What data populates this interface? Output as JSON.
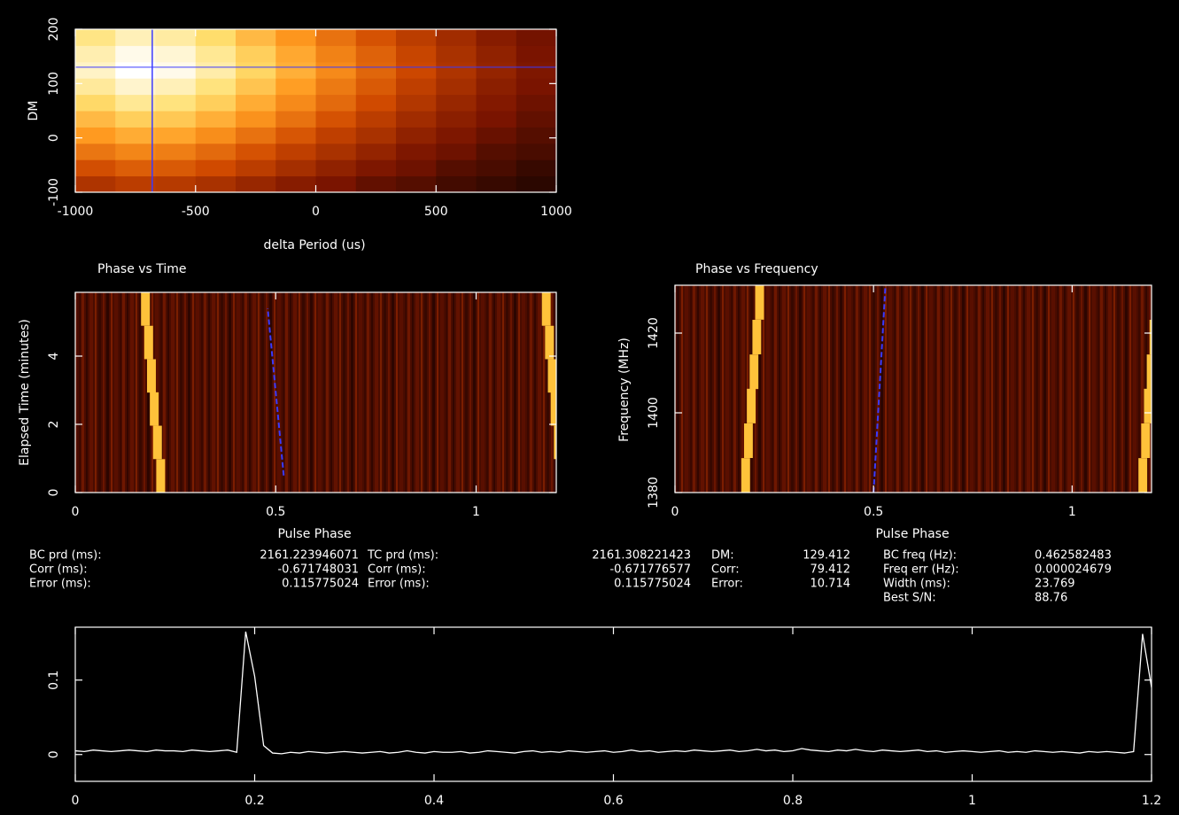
{
  "chart_data": [
    {
      "type": "heatmap",
      "xlabel": "delta Period (us)",
      "ylabel": "DM",
      "xlim": [
        -1000,
        1000
      ],
      "ylim": [
        -100,
        200
      ],
      "xticks": [
        -1000,
        -500,
        0,
        500,
        1000
      ],
      "yticks": [
        -100,
        0,
        100,
        200
      ],
      "colormap": [
        "#000000",
        "#7a1400",
        "#d04a00",
        "#ff9a20",
        "#ffe070",
        "#ffffff"
      ],
      "z": [
        [
          0.32,
          0.35,
          0.34,
          0.31,
          0.27,
          0.23,
          0.2,
          0.16,
          0.14,
          0.11,
          0.09,
          0.07
        ],
        [
          0.41,
          0.45,
          0.44,
          0.4,
          0.35,
          0.3,
          0.25,
          0.21,
          0.18,
          0.14,
          0.12,
          0.09
        ],
        [
          0.51,
          0.55,
          0.53,
          0.48,
          0.42,
          0.36,
          0.31,
          0.26,
          0.21,
          0.18,
          0.14,
          0.12
        ],
        [
          0.6,
          0.65,
          0.63,
          0.57,
          0.5,
          0.43,
          0.36,
          0.31,
          0.25,
          0.21,
          0.17,
          0.14
        ],
        [
          0.69,
          0.75,
          0.73,
          0.66,
          0.58,
          0.5,
          0.42,
          0.35,
          0.29,
          0.24,
          0.2,
          0.16
        ],
        [
          0.78,
          0.85,
          0.82,
          0.75,
          0.65,
          0.56,
          0.48,
          0.4,
          0.33,
          0.27,
          0.22,
          0.18
        ],
        [
          0.86,
          0.93,
          0.9,
          0.82,
          0.72,
          0.61,
          0.52,
          0.44,
          0.36,
          0.3,
          0.24,
          0.2
        ],
        [
          0.92,
          1,
          0.97,
          0.88,
          0.77,
          0.66,
          0.56,
          0.47,
          0.39,
          0.32,
          0.26,
          0.21
        ],
        [
          0.89,
          0.97,
          0.94,
          0.85,
          0.75,
          0.64,
          0.54,
          0.46,
          0.38,
          0.31,
          0.25,
          0.2
        ],
        [
          0.83,
          0.9,
          0.87,
          0.79,
          0.69,
          0.59,
          0.5,
          0.42,
          0.35,
          0.29,
          0.23,
          0.19
        ]
      ],
      "crosshair": {
        "x": -680,
        "y": 130,
        "color": "#3a3aff"
      }
    },
    {
      "type": "phase",
      "title": "Phase vs Time",
      "xlabel": "Pulse Phase",
      "ylabel": "Elapsed Time (minutes)",
      "xlim": [
        0,
        1.2
      ],
      "ylim": [
        0,
        5.87
      ],
      "xticks": [
        0,
        0.5,
        1
      ],
      "yticks": [
        0,
        2,
        4
      ],
      "background": "#4a0c00",
      "tracks": [
        {
          "color": "#ffc23a",
          "x": [
            0.213,
            0.205,
            0.197,
            0.19,
            0.183,
            0.175
          ],
          "y": [
            0.49,
            1.47,
            2.45,
            3.42,
            4.4,
            5.38
          ]
        },
        {
          "color": "#ffc23a",
          "x": [
            1.213,
            1.205,
            1.197,
            1.19,
            1.183,
            1.175
          ],
          "y": [
            0.49,
            1.47,
            2.45,
            3.42,
            4.4,
            5.38
          ]
        }
      ],
      "fit": {
        "color": "#3a3aff",
        "x": [
          0.52,
          0.48
        ],
        "y": [
          0.5,
          5.4
        ]
      }
    },
    {
      "type": "phase",
      "title": "Phase vs Frequency",
      "xlabel": "Pulse Phase",
      "ylabel": "Frequency (MHz)",
      "xlim": [
        0,
        1.2
      ],
      "ylim": [
        1380,
        1432
      ],
      "xticks": [
        0,
        0.5,
        1
      ],
      "yticks": [
        1380,
        1400,
        1420
      ],
      "background": "#4a0c00",
      "tracks": [
        {
          "color": "#ffc23a",
          "x": [
            0.178,
            0.185,
            0.192,
            0.199,
            0.206,
            0.213
          ],
          "y": [
            1384.3,
            1393,
            1401.7,
            1410.3,
            1419,
            1427.7
          ]
        },
        {
          "color": "#ffc23a",
          "x": [
            1.178,
            1.185,
            1.192,
            1.199,
            1.206,
            1.213
          ],
          "y": [
            1384.3,
            1393,
            1401.7,
            1410.3,
            1419,
            1427.7
          ]
        }
      ],
      "fit": {
        "color": "#3a3aff",
        "x": [
          0.5,
          0.53
        ],
        "y": [
          1380,
          1432
        ]
      }
    },
    {
      "type": "line",
      "color": "#ffffff",
      "xlim": [
        0,
        1.2
      ],
      "ylim": [
        -0.036,
        0.171
      ],
      "xticks": [
        0,
        0.2,
        0.4,
        0.6,
        0.8,
        1,
        1.2
      ],
      "yticks": [
        0,
        0.1
      ],
      "x": [
        0,
        0.01,
        0.02,
        0.03,
        0.04,
        0.05,
        0.06,
        0.07,
        0.08,
        0.09,
        0.1,
        0.11,
        0.12,
        0.13,
        0.14,
        0.15,
        0.16,
        0.17,
        0.18,
        0.19,
        0.2,
        0.21,
        0.22,
        0.23,
        0.24,
        0.25,
        0.26,
        0.27,
        0.28,
        0.29,
        0.3,
        0.31,
        0.32,
        0.33,
        0.34,
        0.35,
        0.36,
        0.37,
        0.38,
        0.39,
        0.4,
        0.41,
        0.42,
        0.43,
        0.44,
        0.45,
        0.46,
        0.47,
        0.48,
        0.49,
        0.5,
        0.51,
        0.52,
        0.53,
        0.54,
        0.55,
        0.56,
        0.57,
        0.58,
        0.59,
        0.6,
        0.61,
        0.62,
        0.63,
        0.64,
        0.65,
        0.66,
        0.67,
        0.68,
        0.69,
        0.7,
        0.71,
        0.72,
        0.73,
        0.74,
        0.75,
        0.76,
        0.77,
        0.78,
        0.79,
        0.8,
        0.81,
        0.82,
        0.83,
        0.84,
        0.85,
        0.86,
        0.87,
        0.88,
        0.89,
        0.9,
        0.91,
        0.92,
        0.93,
        0.94,
        0.95,
        0.96,
        0.97,
        0.98,
        0.99,
        1,
        1.01,
        1.02,
        1.03,
        1.04,
        1.05,
        1.06,
        1.07,
        1.08,
        1.09,
        1.1,
        1.11,
        1.12,
        1.13,
        1.14,
        1.15,
        1.16,
        1.17,
        1.18,
        1.19,
        1.2
      ],
      "values": [
        0.005,
        0.004,
        0.006,
        0.005,
        0.004,
        0.005,
        0.006,
        0.005,
        0.004,
        0.006,
        0.005,
        0.005,
        0.004,
        0.006,
        0.005,
        0.004,
        0.005,
        0.006,
        0.003,
        0.165,
        0.105,
        0.012,
        0.002,
        0.001,
        0.003,
        0.002,
        0.004,
        0.003,
        0.002,
        0.003,
        0.004,
        0.003,
        0.002,
        0.003,
        0.004,
        0.002,
        0.003,
        0.005,
        0.003,
        0.002,
        0.004,
        0.003,
        0.003,
        0.004,
        0.002,
        0.003,
        0.005,
        0.004,
        0.003,
        0.002,
        0.004,
        0.005,
        0.003,
        0.004,
        0.003,
        0.005,
        0.004,
        0.003,
        0.004,
        0.005,
        0.003,
        0.004,
        0.006,
        0.004,
        0.005,
        0.003,
        0.004,
        0.005,
        0.004,
        0.006,
        0.005,
        0.004,
        0.005,
        0.006,
        0.004,
        0.005,
        0.007,
        0.005,
        0.006,
        0.004,
        0.005,
        0.008,
        0.006,
        0.005,
        0.004,
        0.006,
        0.005,
        0.007,
        0.005,
        0.004,
        0.006,
        0.005,
        0.004,
        0.005,
        0.006,
        0.004,
        0.005,
        0.003,
        0.004,
        0.005,
        0.004,
        0.003,
        0.004,
        0.005,
        0.003,
        0.004,
        0.003,
        0.005,
        0.004,
        0.003,
        0.004,
        0.003,
        0.002,
        0.004,
        0.003,
        0.004,
        0.003,
        0.002,
        0.004,
        0.162,
        0.09
      ]
    }
  ],
  "parameters": {
    "groups": [
      {
        "rows": [
          [
            "BC prd (ms):",
            "2161.223946071"
          ],
          [
            "Corr (ms):",
            "-0.671748031"
          ],
          [
            "Error (ms):",
            "0.115775024"
          ]
        ]
      },
      {
        "rows": [
          [
            "TC prd (ms):",
            "2161.308221423"
          ],
          [
            "Corr (ms):",
            "-0.671776577"
          ],
          [
            "Error (ms):",
            "0.115775024"
          ]
        ]
      },
      {
        "rows": [
          [
            "DM:",
            "129.412"
          ],
          [
            "Corr:",
            "79.412"
          ],
          [
            "Error:",
            "10.714"
          ]
        ]
      },
      {
        "rows": [
          [
            "BC freq (Hz):",
            "0.462582483"
          ],
          [
            "Freq err (Hz):",
            "0.000024679"
          ],
          [
            "Width (ms):",
            "23.769"
          ],
          [
            "Best S/N:",
            "88.76"
          ]
        ]
      }
    ]
  }
}
